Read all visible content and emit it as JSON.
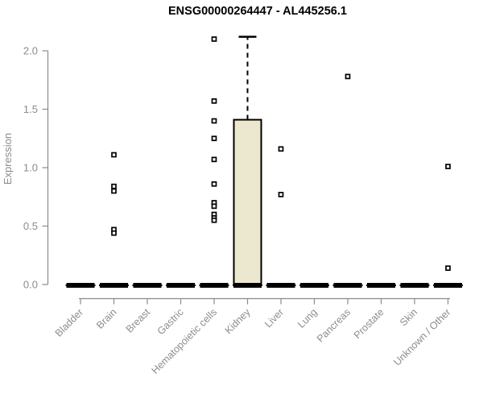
{
  "colors": {
    "background": "#ffffff",
    "title": "#000000",
    "axis": "#8c8c8c",
    "box_fill": "#ece8cf",
    "box_stroke": "#000000",
    "outlier_fill": "#ffffff"
  },
  "chart_data": {
    "type": "boxplot",
    "title": "ENSG00000264447 - AL445256.1",
    "xlabel": "",
    "ylabel": "Expression",
    "ylim": [
      0,
      2.0
    ],
    "yticks": [
      0.0,
      0.5,
      1.0,
      1.5,
      2.0
    ],
    "grid": false,
    "legend": false,
    "categories": [
      "Bladder",
      "Brain",
      "Breast",
      "Gastric",
      "Hematopoietic cells",
      "Kidney",
      "Liver",
      "Lung",
      "Pancreas",
      "Prostate",
      "Skin",
      "Unknown / Other"
    ],
    "boxes": [
      {
        "category": "Bladder",
        "whisker_low": 0,
        "q1": 0,
        "median": 0,
        "q3": 0,
        "whisker_high": 0,
        "outliers": []
      },
      {
        "category": "Brain",
        "whisker_low": 0,
        "q1": 0,
        "median": 0,
        "q3": 0,
        "whisker_high": 0,
        "outliers": [
          1.11,
          0.84,
          0.8,
          0.47,
          0.44
        ]
      },
      {
        "category": "Breast",
        "whisker_low": 0,
        "q1": 0,
        "median": 0,
        "q3": 0,
        "whisker_high": 0,
        "outliers": []
      },
      {
        "category": "Gastric",
        "whisker_low": 0,
        "q1": 0,
        "median": 0,
        "q3": 0,
        "whisker_high": 0,
        "outliers": []
      },
      {
        "category": "Hematopoietic cells",
        "whisker_low": 0,
        "q1": 0,
        "median": 0,
        "q3": 0,
        "whisker_high": 0,
        "outliers": [
          2.1,
          1.57,
          1.4,
          1.25,
          1.07,
          0.86,
          0.7,
          0.67,
          0.6,
          0.57,
          0.55
        ]
      },
      {
        "category": "Kidney",
        "whisker_low": 0,
        "q1": 0,
        "median": 0,
        "q3": 1.41,
        "whisker_high": 2.12,
        "outliers": []
      },
      {
        "category": "Liver",
        "whisker_low": 0,
        "q1": 0,
        "median": 0,
        "q3": 0,
        "whisker_high": 0,
        "outliers": [
          1.16,
          0.77
        ]
      },
      {
        "category": "Lung",
        "whisker_low": 0,
        "q1": 0,
        "median": 0,
        "q3": 0,
        "whisker_high": 0,
        "outliers": []
      },
      {
        "category": "Pancreas",
        "whisker_low": 0,
        "q1": 0,
        "median": 0,
        "q3": 0,
        "whisker_high": 0,
        "outliers": [
          1.78
        ]
      },
      {
        "category": "Prostate",
        "whisker_low": 0,
        "q1": 0,
        "median": 0,
        "q3": 0,
        "whisker_high": 0,
        "outliers": []
      },
      {
        "category": "Skin",
        "whisker_low": 0,
        "q1": 0,
        "median": 0,
        "q3": 0,
        "whisker_high": 0,
        "outliers": []
      },
      {
        "category": "Unknown / Other",
        "whisker_low": 0,
        "q1": 0,
        "median": 0,
        "q3": 0,
        "whisker_high": 0,
        "outliers": [
          1.01,
          0.14
        ]
      }
    ]
  }
}
